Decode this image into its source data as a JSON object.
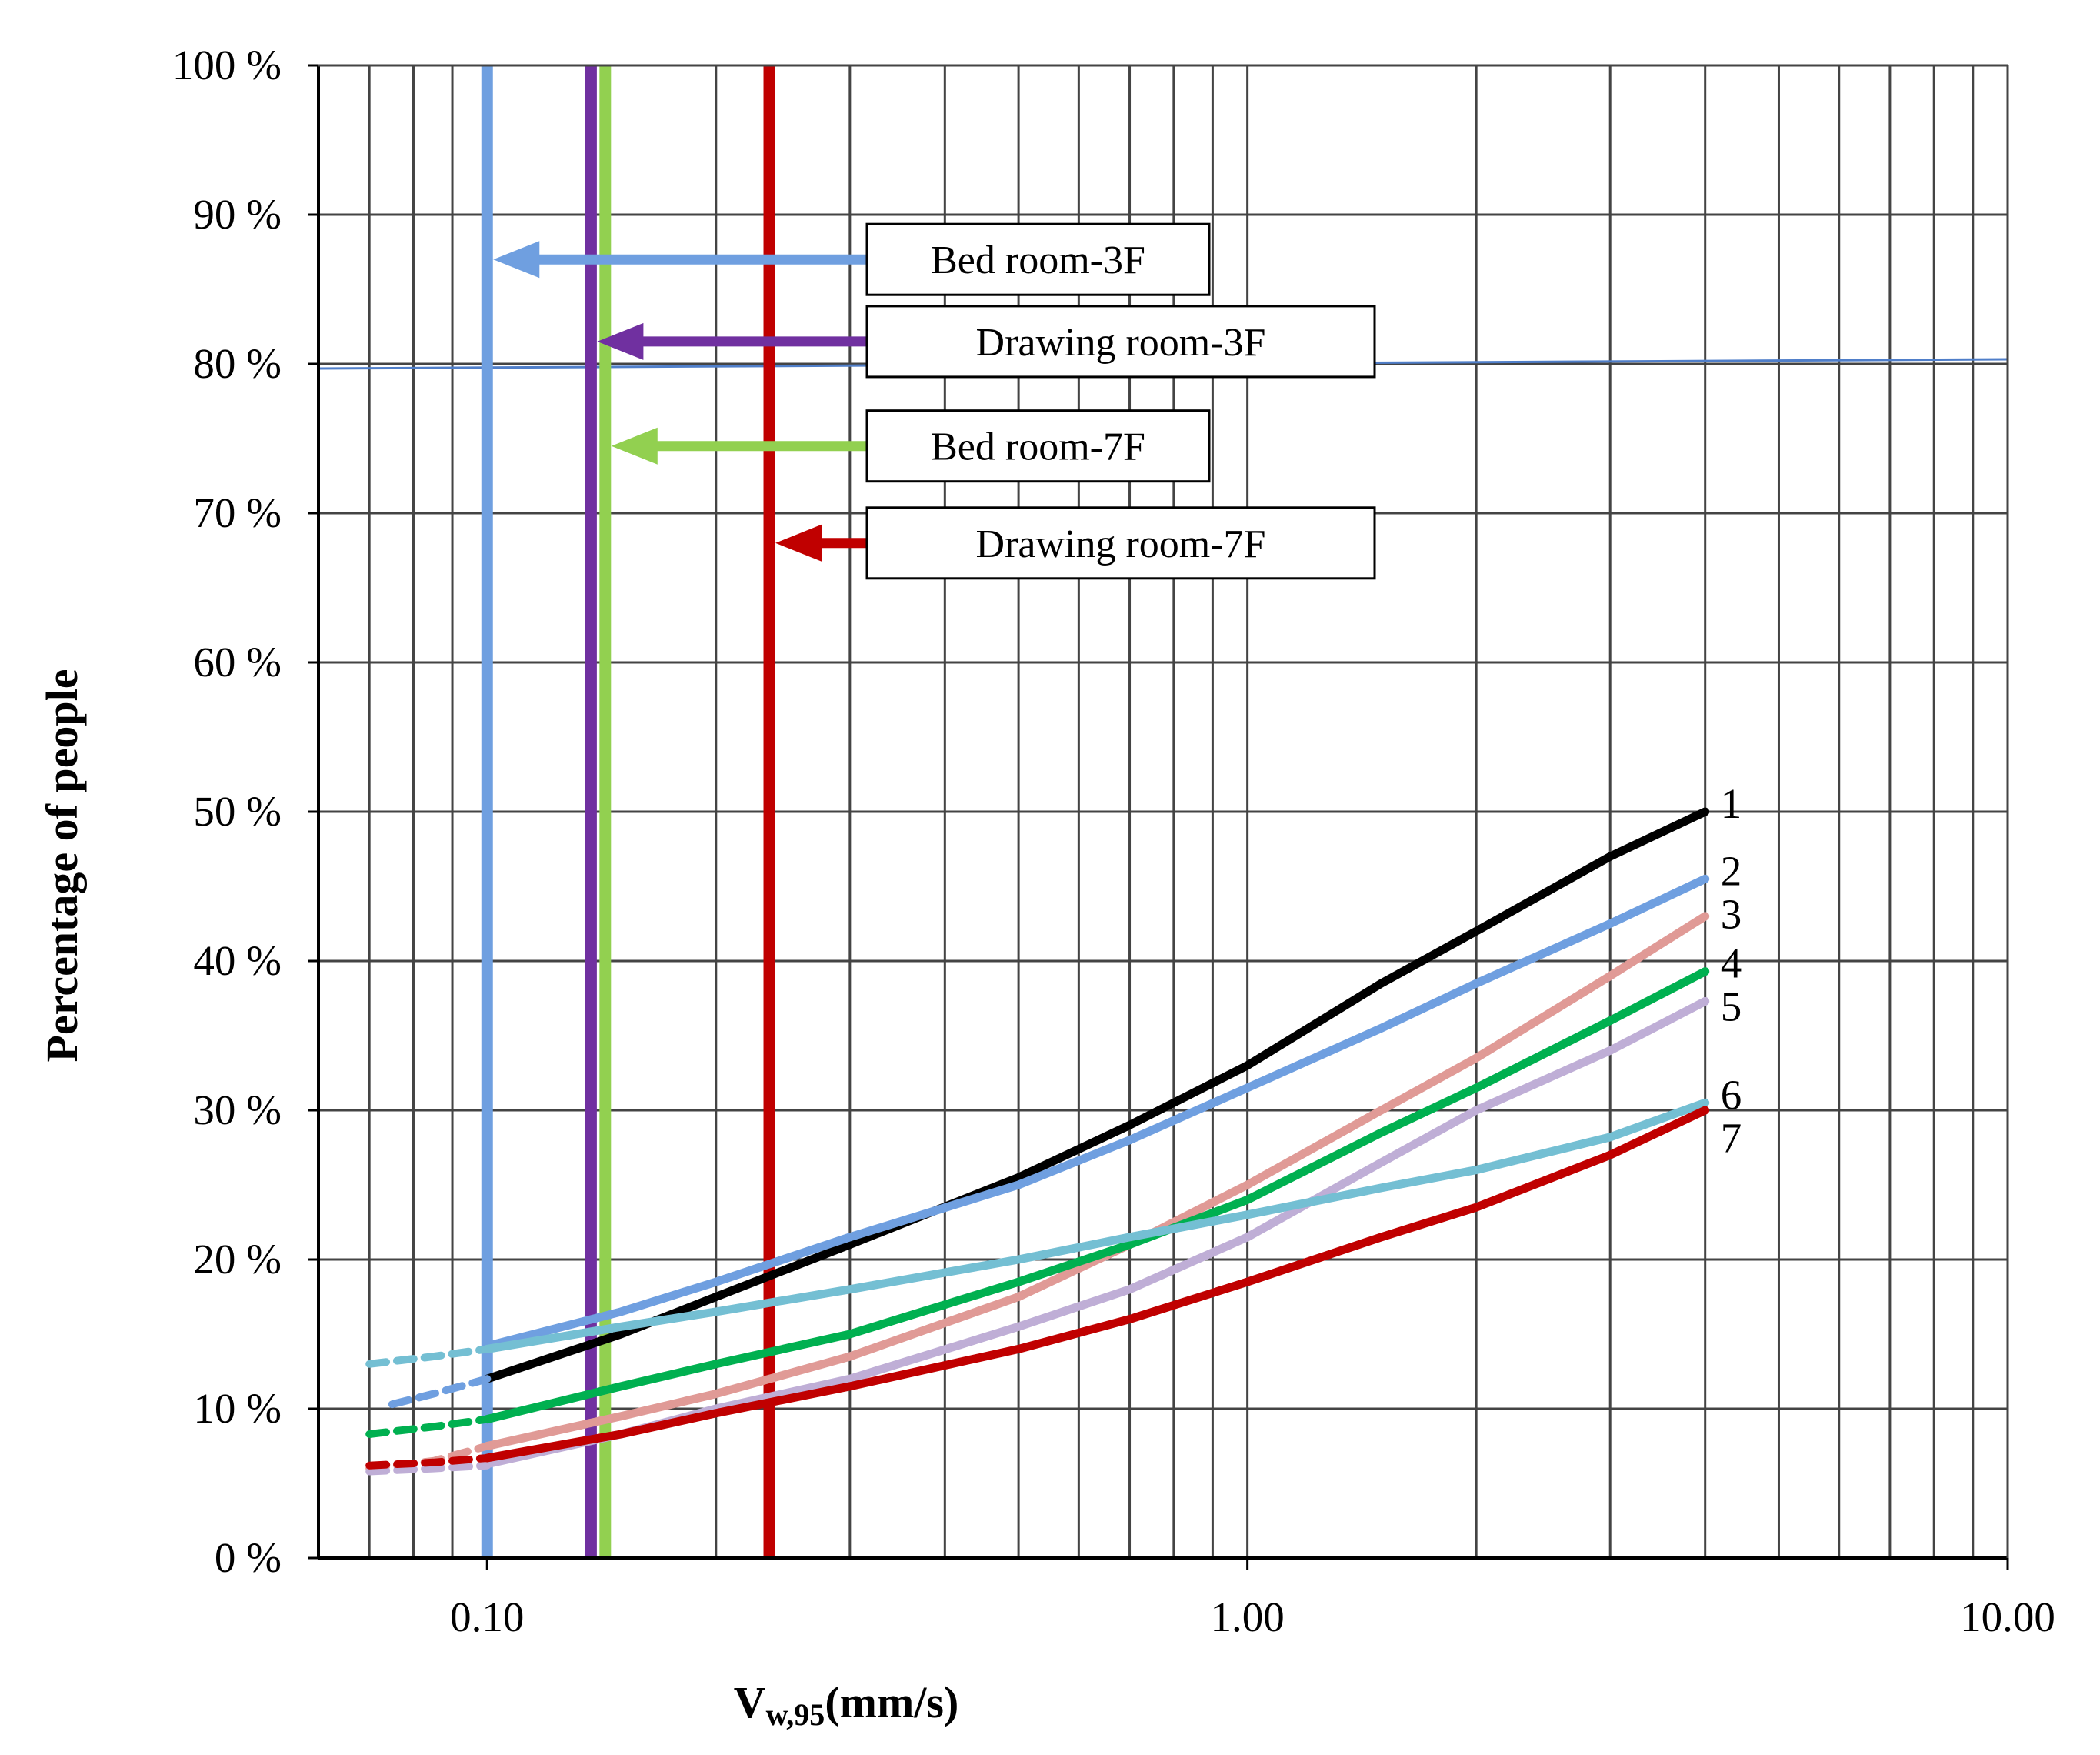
{
  "chart_data": {
    "type": "line",
    "title": "",
    "xlabel": {
      "main": "V",
      "sub": "w,95",
      "unit": "(mm/s)"
    },
    "ylabel": "Percentage of people",
    "xscale": "log",
    "xlim": [
      0.06,
      10
    ],
    "ylim": [
      0,
      100
    ],
    "grid": true,
    "y_ticks": [
      0,
      10,
      20,
      30,
      40,
      50,
      60,
      70,
      80,
      90,
      100
    ],
    "y_tick_labels": [
      "0 %",
      "10 %",
      "20 %",
      "30 %",
      "40 %",
      "50 %",
      "60 %",
      "70 %",
      "80 %",
      "90 %",
      "100 %"
    ],
    "x_ticks": [
      0.1,
      1,
      10
    ],
    "x_tick_labels": [
      "0.10",
      "1.00",
      "10.00"
    ],
    "reference_line": {
      "y": 80,
      "color": "#4f7ec9"
    },
    "thresholds": [
      {
        "name": "Bed room-3F",
        "x": 0.1,
        "color": "#6f9fe0",
        "arrow_y": 87
      },
      {
        "name": "Drawing room-3F",
        "x": 0.137,
        "color": "#7030a0",
        "arrow_y": 81.5
      },
      {
        "name": "Bed room-7F",
        "x": 0.143,
        "color": "#92d050",
        "arrow_y": 74.5
      },
      {
        "name": "Drawing room-7F",
        "x": 0.235,
        "color": "#c00000",
        "arrow_y": 68
      }
    ],
    "series": [
      {
        "name": "1",
        "color": "#000000",
        "dashed_x": [],
        "dashed_y": [],
        "x": [
          0.1,
          0.15,
          0.2,
          0.3,
          0.5,
          0.7,
          1.0,
          1.5,
          2.0,
          3.0,
          4.0
        ],
        "y": [
          12,
          15,
          17.5,
          21,
          25.5,
          29,
          33,
          38.5,
          42,
          47,
          50
        ]
      },
      {
        "name": "2",
        "color": "#6f9fe0",
        "dashed_x": [
          0.075,
          0.085,
          0.1
        ],
        "dashed_y": [
          10.3,
          11,
          12
        ],
        "x": [
          0.1,
          0.15,
          0.2,
          0.3,
          0.5,
          0.7,
          1.0,
          1.5,
          2.0,
          3.0,
          4.0
        ],
        "y": [
          14.2,
          16.5,
          18.5,
          21.5,
          25,
          28,
          31.5,
          35.5,
          38.5,
          42.5,
          45.5
        ]
      },
      {
        "name": "3",
        "color": "#e09a96",
        "dashed_x": [
          0.07,
          0.085,
          0.1
        ],
        "dashed_y": [
          6,
          6.5,
          7.5
        ],
        "x": [
          0.1,
          0.15,
          0.2,
          0.3,
          0.5,
          0.7,
          1.0,
          1.5,
          2.0,
          3.0,
          4.0
        ],
        "y": [
          7.5,
          9.5,
          11,
          13.5,
          17.5,
          21,
          25,
          30,
          33.5,
          39,
          43
        ]
      },
      {
        "name": "4",
        "color": "#00b050",
        "dashed_x": [
          0.07,
          0.085,
          0.1
        ],
        "dashed_y": [
          8.3,
          8.8,
          9.3
        ],
        "x": [
          0.1,
          0.15,
          0.2,
          0.3,
          0.5,
          0.7,
          1.0,
          1.5,
          2.0,
          3.0,
          4.0
        ],
        "y": [
          9.3,
          11.5,
          13,
          15,
          18.5,
          21,
          24,
          28.5,
          31.5,
          36,
          39.3
        ]
      },
      {
        "name": "5",
        "color": "#bfaed6",
        "dashed_x": [
          0.07,
          0.085,
          0.1
        ],
        "dashed_y": [
          5.8,
          6,
          6.2
        ],
        "x": [
          0.1,
          0.15,
          0.2,
          0.3,
          0.5,
          0.7,
          1.0,
          1.5,
          2.0,
          3.0,
          4.0
        ],
        "y": [
          6.3,
          8.3,
          10,
          12,
          15.5,
          18,
          21.5,
          26.5,
          30,
          34,
          37.3
        ]
      },
      {
        "name": "6",
        "color": "#74bfd3",
        "dashed_x": [
          0.07,
          0.085,
          0.1
        ],
        "dashed_y": [
          13,
          13.5,
          14
        ],
        "x": [
          0.1,
          0.15,
          0.2,
          0.3,
          0.5,
          0.7,
          1.0,
          1.5,
          2.0,
          3.0,
          4.0
        ],
        "y": [
          14,
          15.5,
          16.5,
          18,
          20,
          21.5,
          23,
          24.8,
          26,
          28.2,
          30.5
        ]
      },
      {
        "name": "7",
        "color": "#c00000",
        "dashed_x": [
          0.07,
          0.085,
          0.1
        ],
        "dashed_y": [
          6.2,
          6.4,
          6.7
        ],
        "x": [
          0.1,
          0.15,
          0.2,
          0.3,
          0.5,
          0.7,
          1.0,
          1.5,
          2.0,
          3.0,
          4.0
        ],
        "y": [
          6.7,
          8.3,
          9.7,
          11.5,
          14,
          16,
          18.5,
          21.5,
          23.5,
          27,
          30
        ]
      }
    ]
  }
}
